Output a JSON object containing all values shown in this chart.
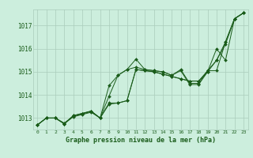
{
  "xlabel": "Graphe pression niveau de la mer (hPa)",
  "bg_color": "#cceedd",
  "grid_color": "#aaccbb",
  "line_color": "#1a5c1a",
  "marker_color": "#1a5c1a",
  "ylim": [
    1012.5,
    1017.7
  ],
  "xlim": [
    -0.5,
    23.5
  ],
  "yticks": [
    1013,
    1014,
    1015,
    1016,
    1017
  ],
  "xticks": [
    0,
    1,
    2,
    3,
    4,
    5,
    6,
    7,
    8,
    9,
    10,
    11,
    12,
    13,
    14,
    15,
    16,
    17,
    18,
    19,
    20,
    21,
    22,
    23
  ],
  "series": [
    [
      1012.7,
      1013.0,
      1013.0,
      1012.75,
      1013.1,
      1013.2,
      1013.3,
      1013.0,
      1013.6,
      1013.65,
      1013.75,
      1015.1,
      1015.05,
      1015.0,
      1014.9,
      1014.8,
      1014.7,
      1014.6,
      1014.6,
      1015.0,
      1015.5,
      1016.2,
      1017.3,
      1017.55
    ],
    [
      1012.7,
      1013.0,
      1013.0,
      1012.75,
      1013.05,
      1013.15,
      1013.25,
      1013.0,
      1014.4,
      1014.85,
      1015.1,
      1015.55,
      1015.1,
      1015.05,
      1015.0,
      1014.85,
      1015.05,
      1014.45,
      1014.45,
      1015.0,
      1016.0,
      1015.5,
      1017.3,
      1017.55
    ],
    [
      1012.7,
      1013.0,
      1013.0,
      1012.75,
      1013.1,
      1013.2,
      1013.3,
      1013.0,
      1013.65,
      1013.65,
      1013.75,
      1015.1,
      1015.05,
      1015.0,
      1014.9,
      1014.8,
      1014.7,
      1014.6,
      1014.6,
      1015.05,
      1015.5,
      1016.3,
      1017.3,
      1017.55
    ],
    [
      1012.7,
      1013.0,
      1013.0,
      1012.78,
      1013.08,
      1013.18,
      1013.28,
      1013.0,
      1013.95,
      1014.85,
      1015.1,
      1015.2,
      1015.1,
      1015.05,
      1015.0,
      1014.85,
      1015.1,
      1014.5,
      1014.5,
      1015.05,
      1015.05,
      1016.3,
      1017.3,
      1017.55
    ]
  ]
}
